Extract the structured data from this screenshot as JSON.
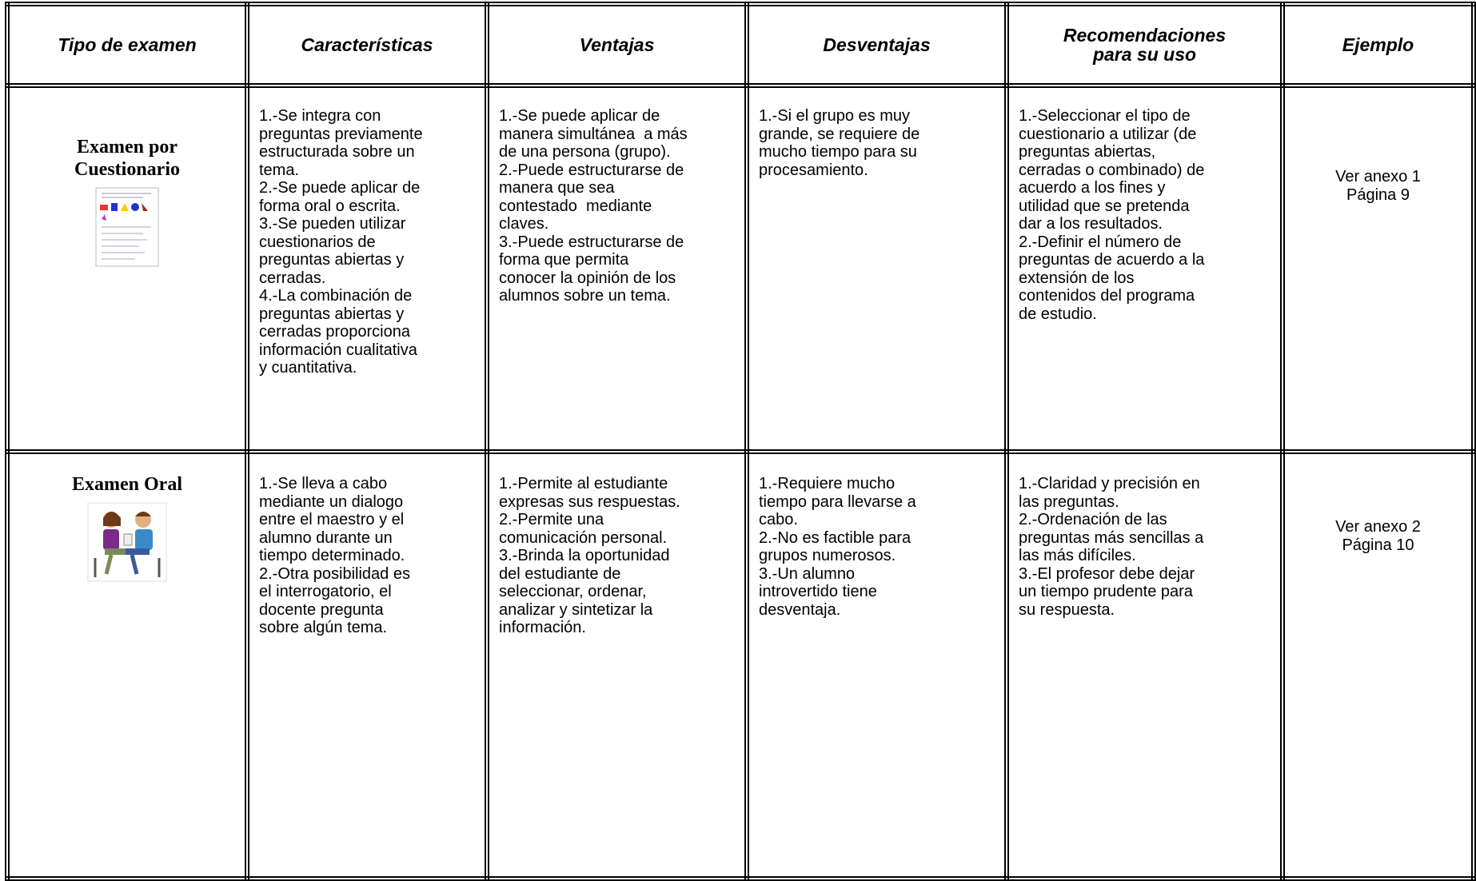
{
  "table": {
    "headers": [
      [
        "Tipo de examen"
      ],
      [
        "Características"
      ],
      [
        "Ventajas"
      ],
      [
        "Desventajas"
      ],
      [
        "Recomendaciones",
        "para su uso"
      ],
      [
        "Ejemplo"
      ]
    ],
    "rows": [
      {
        "title": [
          "Examen por",
          "Cuestionario"
        ],
        "cells": [
          [
            "1.-Se integra con",
            "preguntas previamente",
            "estructurada sobre un",
            "tema.",
            "2.-Se puede aplicar de",
            "forma oral o escrita.",
            "3.-Se pueden utilizar",
            "cuestionarios de",
            "preguntas abiertas y",
            "cerradas.",
            "4.-La combinación de",
            "preguntas abiertas y",
            "cerradas proporciona",
            "información cualitativa",
            "y cuantitativa."
          ],
          [
            "1.-Se puede aplicar de",
            "manera simultánea  a más",
            "de una persona (grupo).",
            "2.-Puede estructurarse de",
            "manera que sea",
            "contestado  mediante",
            "claves.",
            "3.-Puede estructurarse de",
            "forma que permita",
            "conocer la opinión de los",
            "alumnos sobre un tema."
          ],
          [
            "1.-Si el grupo es muy",
            "grande, se requiere de",
            "mucho tiempo para su",
            "procesamiento."
          ],
          [
            "1.-Seleccionar el tipo de",
            "cuestionario a utilizar (de",
            "preguntas abiertas,",
            "cerradas o combinado) de",
            "acuerdo a los fines y",
            "utilidad que se pretenda",
            "dar a los resultados.",
            "2.-Definir el número de",
            "preguntas de acuerdo a la",
            "extensión de los",
            "contenidos del programa",
            "de estudio."
          ]
        ],
        "example": [
          "Ver anexo 1",
          "Página 9"
        ]
      },
      {
        "title": [
          "Examen Oral"
        ],
        "cells": [
          [
            "1.-Se lleva a cabo",
            "mediante un dialogo",
            "entre el maestro y el",
            "alumno durante un",
            "tiempo determinado.",
            "2.-Otra posibilidad es",
            "el interrogatorio, el",
            "docente pregunta",
            "sobre algún tema."
          ],
          [
            "1.-Permite al estudiante",
            "expresas sus respuestas.",
            "2.-Permite una",
            "comunicación personal.",
            "3.-Brinda la oportunidad",
            "del estudiante de",
            "seleccionar, ordenar,",
            "analizar y sintetizar la",
            "información."
          ],
          [
            "1.-Requiere mucho",
            "tiempo para llevarse a",
            "cabo.",
            "2.-No es factible para",
            "grupos numerosos.",
            "3.-Un alumno",
            "introvertido tiene",
            "desventaja."
          ],
          [
            "1.-Claridad y precisión en",
            "las preguntas.",
            "2.-Ordenación de las",
            "preguntas más sencillas a",
            "las más difíciles.",
            "3.-El profesor debe dejar",
            "un tiempo prudente para",
            "su respuesta."
          ]
        ],
        "example": [
          "Ver anexo 2",
          "Página 10"
        ]
      }
    ]
  }
}
